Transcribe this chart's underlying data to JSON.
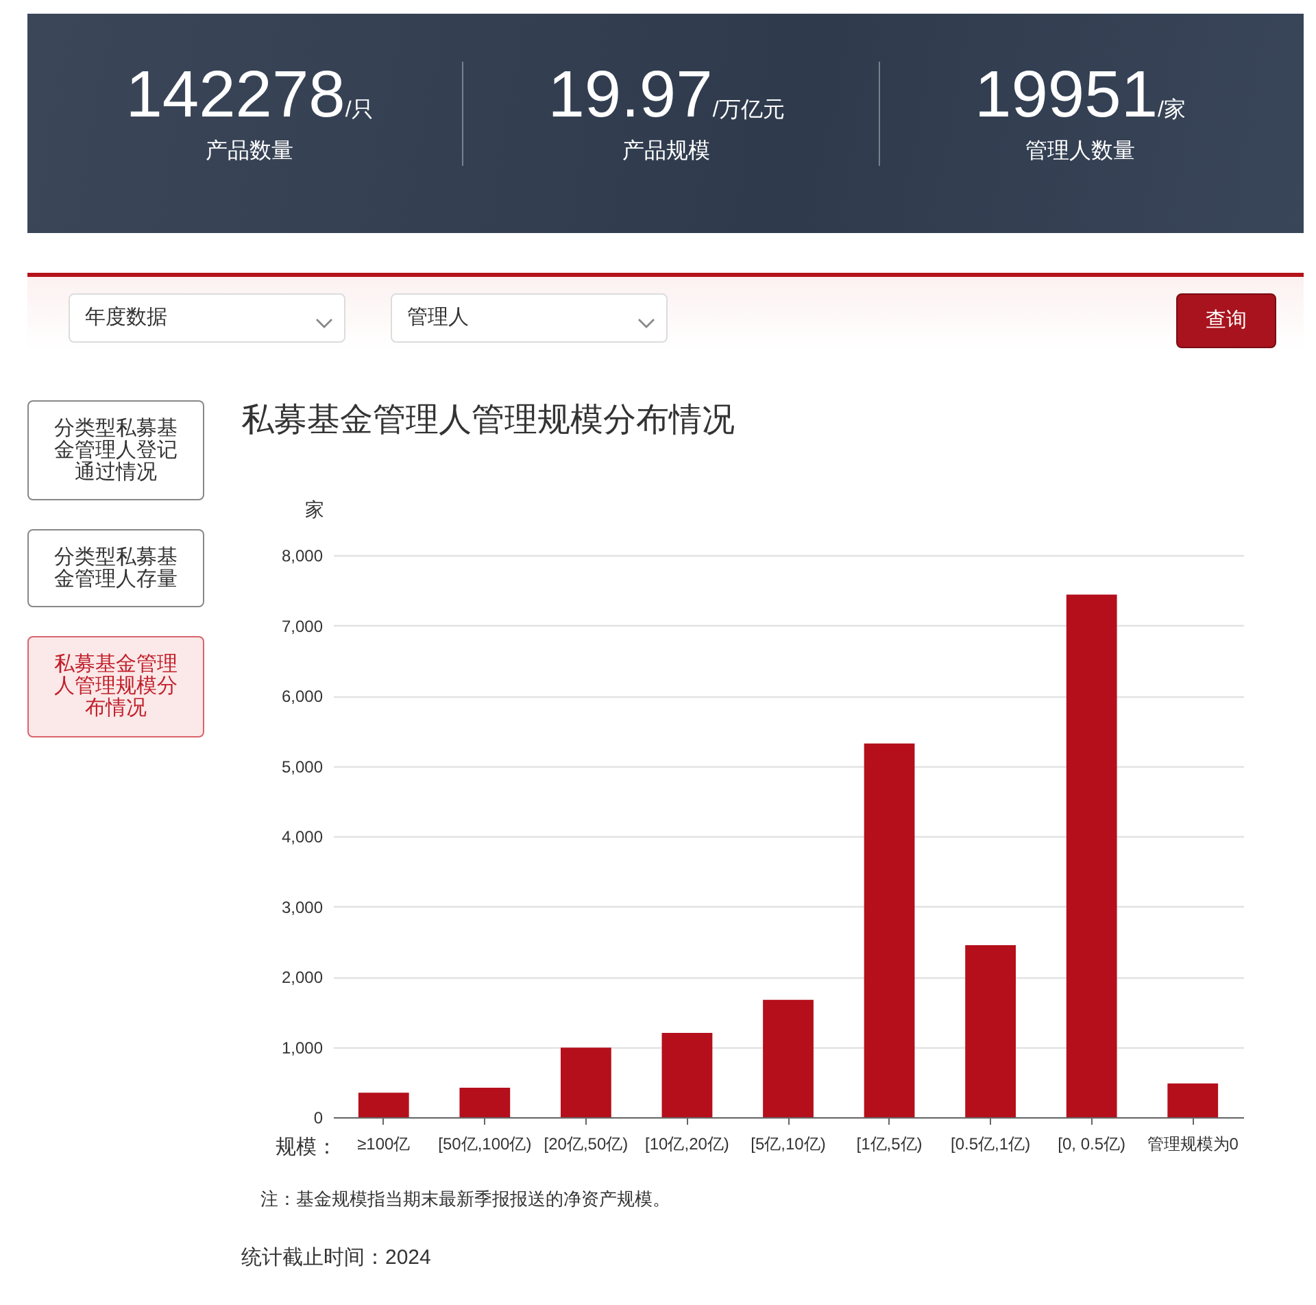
{
  "chart_data": [
    {
      "type": "other",
      "annotations": [
        "142278",
        "/只",
        "产品数量",
        "19.97",
        "/万亿元",
        "产品规模",
        "19951",
        "/家",
        "管理人数量",
        "年度数据",
        "管理人",
        "查询"
      ]
    },
    {
      "type": "other",
      "annotations": [
        "分类型私募基金管理人登记通过情况",
        "分类型私募基金管理人存量",
        "私募基金管理人管理规模分布情况"
      ]
    },
    {
      "type": "bar",
      "title": "私募基金管理人管理规模分布情况",
      "xlabel": "规模：",
      "ylabel": "家",
      "categories": [
        "≥100亿",
        "[50亿,100亿)",
        "[20亿,50亿)",
        "[10亿,20亿)",
        "[5亿,10亿)",
        "[1亿,5亿)",
        "[0.5亿,1亿)",
        "[0, 0.5亿)",
        "管理规模为0"
      ],
      "values": [
        350,
        420,
        990,
        1200,
        1670,
        5320,
        2450,
        7440,
        480
      ],
      "color": "#b40f1b",
      "ylim": [
        0,
        8000
      ],
      "yticks": [
        0,
        {
          "value": 1000,
          "label": "1,000"
        },
        {
          "value": 2000,
          "label": "2,000"
        },
        {
          "value": 3000,
          "label": "3,000"
        },
        {
          "value": 4000,
          "label": "4,000"
        },
        {
          "value": 5000,
          "label": "5,000"
        },
        {
          "value": 6000,
          "label": "6,000"
        },
        {
          "value": 7000,
          "label": "7,000"
        },
        {
          "value": 8000,
          "label": "8,000"
        }
      ],
      "grid": "y",
      "annotations": [
        "注：基金规模指当期末最新季报报送的净资产规模。",
        "统计截止时间：2024"
      ]
    }
  ]
}
